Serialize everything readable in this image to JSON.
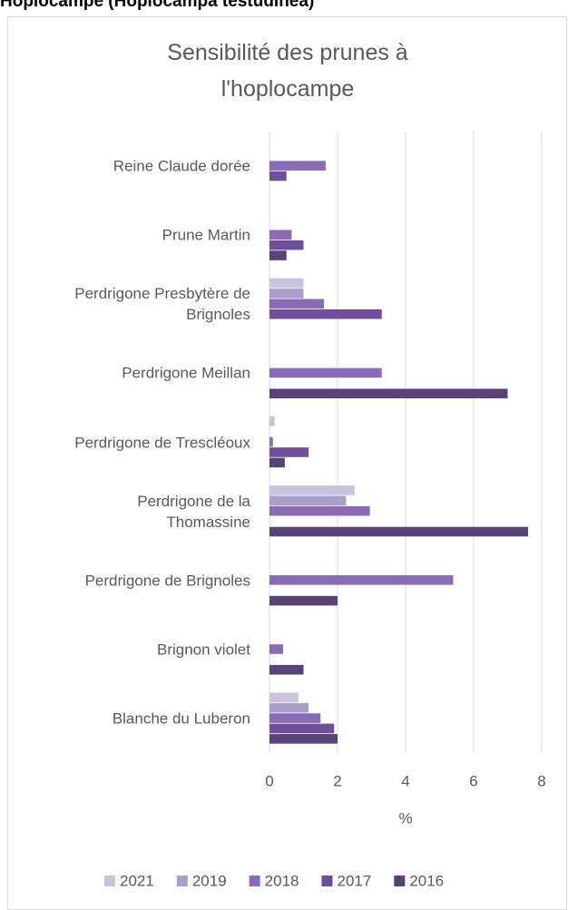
{
  "page_heading": "Hoplocampe (Hoplocampa testudinea)",
  "chart_data": {
    "type": "barh",
    "title": "Sensibilité des prunes  à\nl'hoplocampe",
    "categories": [
      "Reine Claude dorée",
      "Prune Martin",
      "Perdrigone Presbytère de\nBrignoles",
      "Perdrigone Meillan",
      "Perdrigone de Trescléoux",
      "Perdrigone de la\nThomassine",
      "Perdrigone de Brignoles",
      "Brignon violet",
      "Blanche du Luberon"
    ],
    "series": [
      {
        "name": "2021",
        "color": "#cbc3de",
        "values": [
          null,
          null,
          1.0,
          null,
          0.15,
          2.5,
          null,
          null,
          0.85
        ]
      },
      {
        "name": "2019",
        "color": "#aa9dc9",
        "values": [
          null,
          null,
          1.0,
          null,
          null,
          2.25,
          null,
          null,
          1.15
        ]
      },
      {
        "name": "2018",
        "color": "#8a6bb6",
        "values": [
          1.65,
          0.65,
          1.6,
          3.3,
          0.1,
          2.95,
          5.4,
          0.4,
          1.5
        ]
      },
      {
        "name": "2017",
        "color": "#6f4f9b",
        "values": [
          0.5,
          1.0,
          3.3,
          null,
          1.15,
          null,
          null,
          null,
          1.9
        ]
      },
      {
        "name": "2016",
        "color": "#584277",
        "values": [
          null,
          0.5,
          null,
          7.0,
          0.45,
          7.6,
          2.0,
          1.0,
          2.0
        ]
      }
    ],
    "xlabel": "%",
    "xlim": [
      0,
      8
    ],
    "xticks": [
      0,
      2,
      4,
      6,
      8
    ],
    "grid": true,
    "legend": "bottom"
  }
}
